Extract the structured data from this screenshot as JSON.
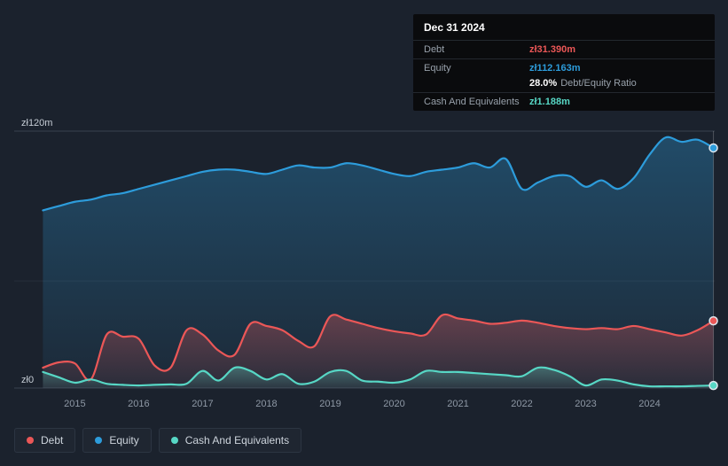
{
  "colors": {
    "debt": "#eb5757",
    "equity": "#2d9cdb",
    "cash": "#57d7c5"
  },
  "tooltip": {
    "date": "Dec 31 2024",
    "debt_label": "Debt",
    "debt_value": "zł31.390m",
    "equity_label": "Equity",
    "equity_value": "zł112.163m",
    "ratio_value": "28.0%",
    "ratio_label": "Debt/Equity Ratio",
    "cash_label": "Cash And Equivalents",
    "cash_value": "zł1.188m"
  },
  "legend": {
    "debt": "Debt",
    "equity": "Equity",
    "cash": "Cash And Equivalents"
  },
  "chart_data": {
    "type": "area",
    "ylim": [
      0,
      120
    ],
    "y_gridlines": [
      0,
      50,
      120
    ],
    "y_axis_labels": [
      {
        "value": 120,
        "text": "zł120m"
      },
      {
        "value": 0,
        "text": "zł0"
      }
    ],
    "x_tick_positions": [
      2015,
      2016,
      2017,
      2018,
      2019,
      2020,
      2021,
      2022,
      2023,
      2024
    ],
    "x_tick_labels": [
      "2015",
      "2016",
      "2017",
      "2018",
      "2019",
      "2020",
      "2021",
      "2022",
      "2023",
      "2024"
    ],
    "legend_position": "bottom",
    "grid": "horizontal",
    "x": [
      2014.5,
      2014.75,
      2015,
      2015.25,
      2015.5,
      2015.75,
      2016,
      2016.25,
      2016.5,
      2016.75,
      2017,
      2017.25,
      2017.5,
      2017.75,
      2018,
      2018.25,
      2018.5,
      2018.75,
      2019,
      2019.25,
      2019.5,
      2019.75,
      2020,
      2020.25,
      2020.5,
      2020.75,
      2021,
      2021.25,
      2021.5,
      2021.75,
      2022,
      2022.25,
      2022.5,
      2022.75,
      2023,
      2023.25,
      2023.5,
      2023.75,
      2024,
      2024.25,
      2024.5,
      2024.75,
      2025
    ],
    "series": [
      {
        "name": "Equity",
        "color": "#2d9cdb",
        "values": [
          83,
          85,
          87,
          88,
          90,
          91,
          93,
          95,
          97,
          99,
          101,
          102,
          102,
          101,
          100,
          102,
          104,
          103,
          103,
          105,
          104,
          102,
          100,
          99,
          101,
          102,
          103,
          105,
          103,
          107,
          93,
          96,
          99,
          99,
          94,
          97,
          93,
          98,
          109,
          117,
          115,
          116,
          112.163
        ]
      },
      {
        "name": "Debt",
        "color": "#eb5757",
        "values": [
          9.5,
          12,
          11.5,
          4,
          25,
          24,
          23,
          10.5,
          9.5,
          27,
          25,
          17.5,
          15.5,
          30,
          29,
          27,
          22,
          19.5,
          33.5,
          32,
          30,
          28,
          26.5,
          25.5,
          25,
          34,
          32.5,
          31.5,
          30,
          30.5,
          31.5,
          30.5,
          29,
          28,
          27.5,
          28,
          27.5,
          29,
          27.5,
          26,
          24.5,
          27,
          31.39
        ]
      },
      {
        "name": "Cash And Equivalents",
        "color": "#57d7c5",
        "values": [
          7.5,
          5,
          2.5,
          4,
          2,
          1.5,
          1.2,
          1.5,
          1.7,
          2,
          8,
          3.5,
          9.5,
          8,
          4,
          6.5,
          2,
          3,
          7.5,
          8,
          3.5,
          3,
          2.5,
          4,
          8,
          7.5,
          7.5,
          7,
          6.5,
          6,
          5.5,
          9.5,
          8.5,
          5.5,
          1.2,
          4,
          3.5,
          1.7,
          0.8,
          0.8,
          0.8,
          1,
          1.188
        ]
      }
    ]
  }
}
